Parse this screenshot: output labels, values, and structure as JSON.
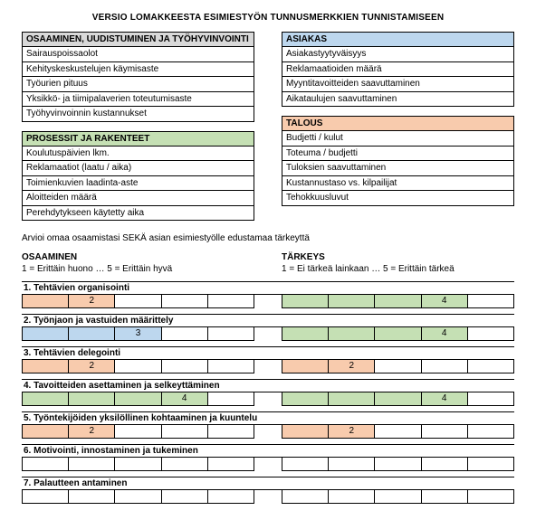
{
  "title": "VERSIO LOMAKKEESTA ESIMIESTYÖN TUNNUSMERKKIEN TUNNISTAMISEEN",
  "colors": {
    "gray": "#d9d9d9",
    "blue": "#bdd7ee",
    "green": "#c5e0b4",
    "orange": "#f8cbad",
    "cellOrange": "#f8cbad",
    "cellBlue": "#bdd7ee",
    "cellGreen": "#c5e0b4"
  },
  "quadrants": {
    "topLeft": {
      "header": "OSAAMINEN, UUDISTUMINEN JA TYÖHYVINVOINTI",
      "headerBg": "gray",
      "items": [
        "Sairauspoissaolot",
        "Kehityskeskustelujen käymisaste",
        "Työurien pituus",
        "Yksikkö- ja tiimipalaverien toteutumisaste",
        "Työhyvinvoinnin kustannukset"
      ]
    },
    "topRight": {
      "header": "ASIAKAS",
      "headerBg": "blue",
      "items": [
        "Asiakastyytyväisyys",
        "Reklamaatioiden määrä",
        "Myyntitavoitteiden saavuttaminen",
        "Aikataulujen saavuttaminen"
      ]
    },
    "bottomLeft": {
      "header": "PROSESSIT JA RAKENTEET",
      "headerBg": "green",
      "items": [
        "Koulutuspäivien lkm.",
        "Reklamaatiot (laatu / aika)",
        "Toimienkuvien laadinta-aste",
        "Aloitteiden määrä",
        "Perehdytykseen käytetty aika"
      ]
    },
    "bottomRight": {
      "header": "TALOUS",
      "headerBg": "orange",
      "items": [
        "Budjetti / kulut",
        "Toteuma / budjetti",
        "Tuloksien saavuttaminen",
        "Kustannustaso vs. kilpailijat",
        "Tehokkuusluvut"
      ]
    }
  },
  "instruction": "Arvioi omaa osaamistasi SEKÄ asian esimiestyölle edustamaa tärkeyttä",
  "scales": {
    "left": {
      "title": "OSAAMINEN",
      "desc": "1 = Erittäin huono … 5 = Erittäin hyvä"
    },
    "right": {
      "title": "TÄRKEYS",
      "desc": "1 = Ei tärkeä lainkaan … 5 = Erittäin tärkeä"
    }
  },
  "ratingItems": [
    {
      "label": "1. Tehtävien organisointi",
      "left": [
        {
          "bg": "cellOrange"
        },
        {
          "bg": "cellOrange",
          "val": "2"
        },
        {
          "bg": null
        },
        {
          "bg": null
        },
        {
          "bg": null
        }
      ],
      "right": [
        {
          "bg": "cellGreen"
        },
        {
          "bg": "cellGreen"
        },
        {
          "bg": "cellGreen"
        },
        {
          "bg": "cellGreen",
          "val": "4"
        },
        {
          "bg": null
        }
      ]
    },
    {
      "label": "2. Työnjaon ja vastuiden määrittely",
      "left": [
        {
          "bg": "cellBlue"
        },
        {
          "bg": "cellBlue"
        },
        {
          "bg": "cellBlue",
          "val": "3"
        },
        {
          "bg": null
        },
        {
          "bg": null
        }
      ],
      "right": [
        {
          "bg": "cellGreen"
        },
        {
          "bg": "cellGreen"
        },
        {
          "bg": "cellGreen"
        },
        {
          "bg": "cellGreen",
          "val": "4"
        },
        {
          "bg": null
        }
      ]
    },
    {
      "label": "3. Tehtävien delegointi",
      "left": [
        {
          "bg": "cellOrange"
        },
        {
          "bg": "cellOrange",
          "val": "2"
        },
        {
          "bg": null
        },
        {
          "bg": null
        },
        {
          "bg": null
        }
      ],
      "right": [
        {
          "bg": "cellOrange"
        },
        {
          "bg": "cellOrange",
          "val": "2"
        },
        {
          "bg": null
        },
        {
          "bg": null
        },
        {
          "bg": null
        }
      ]
    },
    {
      "label": "4. Tavoitteiden asettaminen ja selkeyttäminen",
      "left": [
        {
          "bg": "cellGreen"
        },
        {
          "bg": "cellGreen"
        },
        {
          "bg": "cellGreen"
        },
        {
          "bg": "cellGreen",
          "val": "4"
        },
        {
          "bg": null
        }
      ],
      "right": [
        {
          "bg": "cellGreen"
        },
        {
          "bg": "cellGreen"
        },
        {
          "bg": "cellGreen"
        },
        {
          "bg": "cellGreen",
          "val": "4"
        },
        {
          "bg": null
        }
      ]
    },
    {
      "label": "5. Työntekijöiden yksilöllinen kohtaaminen ja kuuntelu",
      "left": [
        {
          "bg": "cellOrange"
        },
        {
          "bg": "cellOrange",
          "val": "2"
        },
        {
          "bg": null
        },
        {
          "bg": null
        },
        {
          "bg": null
        }
      ],
      "right": [
        {
          "bg": "cellOrange"
        },
        {
          "bg": "cellOrange",
          "val": "2"
        },
        {
          "bg": null
        },
        {
          "bg": null
        },
        {
          "bg": null
        }
      ]
    },
    {
      "label": "6. Motivointi, innostaminen ja tukeminen",
      "left": [
        {
          "bg": null
        },
        {
          "bg": null
        },
        {
          "bg": null
        },
        {
          "bg": null
        },
        {
          "bg": null
        }
      ],
      "right": [
        {
          "bg": null
        },
        {
          "bg": null
        },
        {
          "bg": null
        },
        {
          "bg": null
        },
        {
          "bg": null
        }
      ]
    },
    {
      "label": "7. Palautteen antaminen",
      "left": [
        {
          "bg": null
        },
        {
          "bg": null
        },
        {
          "bg": null
        },
        {
          "bg": null
        },
        {
          "bg": null
        }
      ],
      "right": [
        {
          "bg": null
        },
        {
          "bg": null
        },
        {
          "bg": null
        },
        {
          "bg": null
        },
        {
          "bg": null
        }
      ]
    }
  ]
}
